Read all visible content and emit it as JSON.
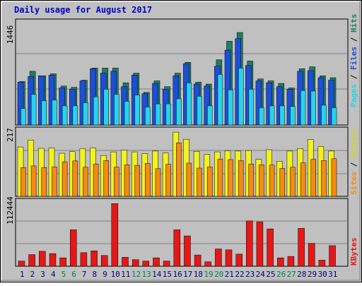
{
  "title": "Daily usage for August 2017",
  "colors": {
    "hits": "#1f7f5f",
    "files": "#1c4fd6",
    "pages": "#27d3ec",
    "visits": "#f2f21e",
    "sites": "#f58a14",
    "kbytes": "#e51717",
    "weekend_day_label": "#00804a",
    "title": "#0000cc"
  },
  "chart_data": [
    {
      "type": "bar",
      "panel": "hits-files-pages",
      "categories": [
        "1",
        "2",
        "3",
        "4",
        "5",
        "6",
        "7",
        "8",
        "9",
        "10",
        "11",
        "12",
        "13",
        "14",
        "15",
        "16",
        "17",
        "18",
        "19",
        "20",
        "21",
        "22",
        "23",
        "24",
        "25",
        "26",
        "27",
        "28",
        "29",
        "30",
        "31"
      ],
      "y_tick_label": "1446",
      "ylim": [
        0,
        1612
      ],
      "legend": [
        "Pages",
        "Files",
        "Hits"
      ],
      "series": [
        {
          "name": "Hits",
          "values": [
            680,
            840,
            770,
            800,
            610,
            590,
            700,
            890,
            890,
            890,
            660,
            810,
            510,
            690,
            600,
            810,
            980,
            670,
            640,
            1020,
            1310,
            1446,
            1000,
            720,
            690,
            650,
            580,
            880,
            910,
            770,
            740
          ]
        },
        {
          "name": "Files",
          "values": [
            670,
            760,
            770,
            780,
            580,
            560,
            690,
            880,
            810,
            840,
            600,
            780,
            490,
            650,
            560,
            770,
            960,
            640,
            610,
            920,
            1170,
            1350,
            930,
            690,
            660,
            600,
            560,
            840,
            850,
            740,
            700
          ]
        },
        {
          "name": "Pages",
          "values": [
            260,
            480,
            380,
            390,
            300,
            300,
            350,
            440,
            560,
            480,
            370,
            470,
            280,
            330,
            330,
            410,
            660,
            450,
            300,
            790,
            550,
            890,
            560,
            270,
            300,
            300,
            290,
            540,
            530,
            310,
            270
          ]
        }
      ]
    },
    {
      "type": "bar",
      "panel": "visits-sites",
      "categories": [
        "1",
        "2",
        "3",
        "4",
        "5",
        "6",
        "7",
        "8",
        "9",
        "10",
        "11",
        "12",
        "13",
        "14",
        "15",
        "16",
        "17",
        "18",
        "19",
        "20",
        "21",
        "22",
        "23",
        "24",
        "25",
        "26",
        "27",
        "28",
        "29",
        "30",
        "31"
      ],
      "y_tick_label": "217",
      "ylim": [
        0,
        242
      ],
      "legend": [
        "Sites",
        "Visits"
      ],
      "series": [
        {
          "name": "Visits",
          "values": [
            180,
            205,
            175,
            176,
            157,
            163,
            174,
            176,
            149,
            162,
            168,
            162,
            156,
            165,
            158,
            234,
            208,
            164,
            153,
            162,
            166,
            165,
            167,
            135,
            170,
            128,
            165,
            174,
            207,
            182,
            165
          ]
        },
        {
          "name": "Sites",
          "values": [
            105,
            111,
            105,
            107,
            126,
            129,
            106,
            118,
            130,
            106,
            115,
            113,
            120,
            101,
            117,
            195,
            121,
            103,
            107,
            136,
            134,
            130,
            118,
            115,
            114,
            102,
            106,
            122,
            135,
            130,
            137
          ]
        }
      ]
    },
    {
      "type": "bar",
      "panel": "kbytes",
      "categories": [
        "1",
        "2",
        "3",
        "4",
        "5",
        "6",
        "7",
        "8",
        "9",
        "10",
        "11",
        "12",
        "13",
        "14",
        "15",
        "16",
        "17",
        "18",
        "19",
        "20",
        "21",
        "22",
        "23",
        "24",
        "25",
        "26",
        "27",
        "28",
        "29",
        "30",
        "31"
      ],
      "y_tick_label": "112444",
      "ylim": [
        0,
        139000
      ],
      "legend": [
        "KBytes"
      ],
      "series": [
        {
          "name": "KBytes",
          "values": [
            11000,
            25000,
            32000,
            27000,
            18000,
            78000,
            29000,
            33000,
            23000,
            134000,
            19000,
            14000,
            11000,
            18000,
            11000,
            78000,
            65000,
            24000,
            9500,
            37000,
            35000,
            26000,
            97000,
            95000,
            80000,
            18000,
            21000,
            81000,
            49000,
            13000,
            44000
          ]
        }
      ]
    }
  ],
  "day_label_colors": [
    "#000080",
    "#000080",
    "#000080",
    "#000080",
    "#00804a",
    "#00804a",
    "#000080",
    "#000080",
    "#000080",
    "#000080",
    "#000080",
    "#00804a",
    "#00804a",
    "#000080",
    "#000080",
    "#000080",
    "#000080",
    "#000080",
    "#00804a",
    "#00804a",
    "#000080",
    "#000080",
    "#000080",
    "#000080",
    "#000080",
    "#00804a",
    "#00804a",
    "#000080",
    "#000080",
    "#000080",
    "#000080"
  ]
}
